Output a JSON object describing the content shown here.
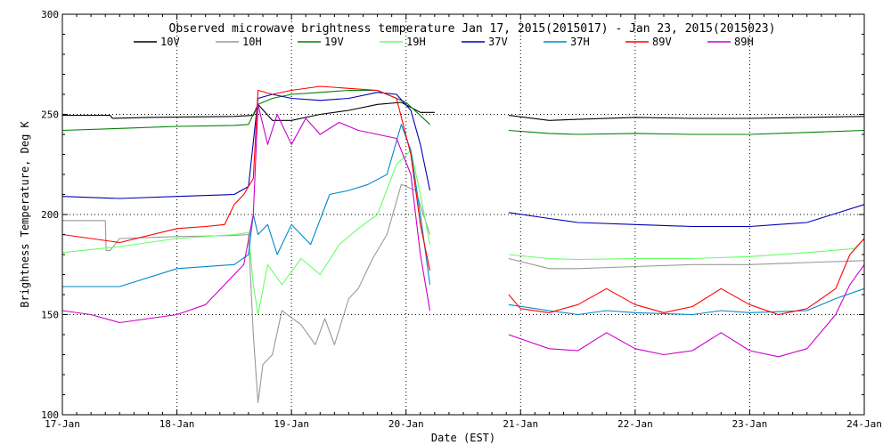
{
  "chart_data": {
    "type": "line",
    "title": "Observed microwave brightness temperature Jan 17, 2015(2015017) - Jan 23, 2015(2015023)",
    "xlabel": "Date (EST)",
    "ylabel": "Brightness Temperature, Deg K",
    "xlim": [
      "2015-01-17",
      "2015-01-24"
    ],
    "ylim": [
      100,
      300
    ],
    "x_ticks": [
      "17-Jan",
      "18-Jan",
      "19-Jan",
      "20-Jan",
      "21-Jan",
      "22-Jan",
      "23-Jan",
      "24-Jan"
    ],
    "y_ticks": [
      100,
      150,
      200,
      250,
      300
    ],
    "grid": "dotted at labeled ticks",
    "legend_position": "top",
    "series": [
      {
        "name": "10V",
        "color": "#000000",
        "points": [
          [
            "2015-01-17 00:00",
            249.5
          ],
          [
            "2015-01-17 10:00",
            249.5
          ],
          [
            "2015-01-17 10:30",
            248
          ],
          [
            "2015-01-17 18:00",
            248.5
          ],
          [
            "2015-01-18 12:00",
            249
          ],
          [
            "2015-01-18 16:00",
            249.5
          ],
          [
            "2015-01-18 17:00",
            255
          ],
          [
            "2015-01-18 20:00",
            247
          ],
          [
            "2015-01-19 00:00",
            247
          ],
          [
            "2015-01-19 06:00",
            250
          ],
          [
            "2015-01-19 12:00",
            252
          ],
          [
            "2015-01-19 18:00",
            255
          ],
          [
            "2015-01-19 23:00",
            256
          ],
          [
            "2015-01-20 03:00",
            251
          ],
          [
            "2015-01-20 06:00",
            251
          ],
          null,
          [
            "2015-01-20 21:30",
            249.5
          ],
          [
            "2015-01-21 06:00",
            247
          ],
          [
            "2015-01-21 12:00",
            247.5
          ],
          [
            "2015-01-22 00:00",
            248.5
          ],
          [
            "2015-01-22 12:00",
            248
          ],
          [
            "2015-01-23 00:00",
            248
          ],
          [
            "2015-01-23 12:00",
            248.5
          ],
          [
            "2015-01-24 00:00",
            249
          ]
        ]
      },
      {
        "name": "10H",
        "color": "#999999",
        "points": [
          [
            "2015-01-17 00:00",
            197
          ],
          [
            "2015-01-17 09:00",
            197
          ],
          [
            "2015-01-17 09:10",
            182
          ],
          [
            "2015-01-17 10:00",
            182
          ],
          [
            "2015-01-17 12:00",
            188
          ],
          [
            "2015-01-18 00:00",
            189
          ],
          [
            "2015-01-18 12:00",
            189.5
          ],
          [
            "2015-01-18 15:00",
            190
          ],
          [
            "2015-01-18 16:00",
            140
          ],
          [
            "2015-01-18 17:00",
            106
          ],
          [
            "2015-01-18 18:00",
            125
          ],
          [
            "2015-01-18 20:00",
            130
          ],
          [
            "2015-01-18 22:00",
            152
          ],
          [
            "2015-01-19 02:00",
            145
          ],
          [
            "2015-01-19 05:00",
            135
          ],
          [
            "2015-01-19 07:00",
            148
          ],
          [
            "2015-01-19 09:00",
            135
          ],
          [
            "2015-01-19 12:00",
            158
          ],
          [
            "2015-01-19 14:00",
            163
          ],
          [
            "2015-01-19 17:00",
            178
          ],
          [
            "2015-01-19 20:00",
            190
          ],
          [
            "2015-01-19 23:00",
            215
          ],
          [
            "2015-01-20 02:00",
            212
          ],
          [
            "2015-01-20 05:00",
            190
          ],
          null,
          [
            "2015-01-20 21:30",
            178
          ],
          [
            "2015-01-21 06:00",
            173
          ],
          [
            "2015-01-21 12:00",
            173
          ],
          [
            "2015-01-22 00:00",
            174
          ],
          [
            "2015-01-22 12:00",
            175
          ],
          [
            "2015-01-23 00:00",
            175
          ],
          [
            "2015-01-23 12:00",
            176
          ],
          [
            "2015-01-24 00:00",
            177
          ]
        ]
      },
      {
        "name": "19V",
        "color": "#008000",
        "points": [
          [
            "2015-01-17 00:00",
            242
          ],
          [
            "2015-01-17 12:00",
            243
          ],
          [
            "2015-01-18 00:00",
            244
          ],
          [
            "2015-01-18 12:00",
            244.5
          ],
          [
            "2015-01-18 15:00",
            245
          ],
          [
            "2015-01-18 17:00",
            255
          ],
          [
            "2015-01-18 20:00",
            258
          ],
          [
            "2015-01-19 00:00",
            260
          ],
          [
            "2015-01-19 06:00",
            261
          ],
          [
            "2015-01-19 12:00",
            262
          ],
          [
            "2015-01-19 18:00",
            262
          ],
          [
            "2015-01-20 00:00",
            256
          ],
          [
            "2015-01-20 05:00",
            245
          ],
          null,
          [
            "2015-01-20 21:30",
            242
          ],
          [
            "2015-01-21 06:00",
            240.5
          ],
          [
            "2015-01-21 12:00",
            240
          ],
          [
            "2015-01-22 00:00",
            240.5
          ],
          [
            "2015-01-22 12:00",
            240
          ],
          [
            "2015-01-23 00:00",
            240
          ],
          [
            "2015-01-23 12:00",
            241
          ],
          [
            "2015-01-24 00:00",
            242
          ]
        ]
      },
      {
        "name": "19H",
        "color": "#66ff66",
        "points": [
          [
            "2015-01-17 00:00",
            181
          ],
          [
            "2015-01-17 12:00",
            184
          ],
          [
            "2015-01-18 00:00",
            188
          ],
          [
            "2015-01-18 12:00",
            190
          ],
          [
            "2015-01-18 15:00",
            191
          ],
          [
            "2015-01-18 16:00",
            165
          ],
          [
            "2015-01-18 17:00",
            150
          ],
          [
            "2015-01-18 19:00",
            175
          ],
          [
            "2015-01-18 22:00",
            165
          ],
          [
            "2015-01-19 02:00",
            178
          ],
          [
            "2015-01-19 06:00",
            170
          ],
          [
            "2015-01-19 10:00",
            185
          ],
          [
            "2015-01-19 14:00",
            193
          ],
          [
            "2015-01-19 18:00",
            200
          ],
          [
            "2015-01-19 22:00",
            225
          ],
          [
            "2015-01-20 01:00",
            232
          ],
          [
            "2015-01-20 03:00",
            210
          ],
          [
            "2015-01-20 05:00",
            185
          ],
          null,
          [
            "2015-01-20 21:30",
            180
          ],
          [
            "2015-01-21 06:00",
            178
          ],
          [
            "2015-01-21 12:00",
            177.5
          ],
          [
            "2015-01-22 00:00",
            178
          ],
          [
            "2015-01-22 12:00",
            178
          ],
          [
            "2015-01-23 00:00",
            179
          ],
          [
            "2015-01-23 12:00",
            181
          ],
          [
            "2015-01-23 22:00",
            183
          ],
          [
            "2015-01-24 00:00",
            188
          ]
        ]
      },
      {
        "name": "37V",
        "color": "#0000b0",
        "points": [
          [
            "2015-01-17 00:00",
            209
          ],
          [
            "2015-01-17 12:00",
            208
          ],
          [
            "2015-01-18 00:00",
            209
          ],
          [
            "2015-01-18 12:00",
            210
          ],
          [
            "2015-01-18 15:00",
            214
          ],
          [
            "2015-01-18 17:00",
            258
          ],
          [
            "2015-01-18 20:00",
            260
          ],
          [
            "2015-01-19 00:00",
            258
          ],
          [
            "2015-01-19 06:00",
            257
          ],
          [
            "2015-01-19 12:00",
            258
          ],
          [
            "2015-01-19 18:00",
            261
          ],
          [
            "2015-01-19 22:00",
            260
          ],
          [
            "2015-01-20 01:00",
            252
          ],
          [
            "2015-01-20 03:00",
            235
          ],
          [
            "2015-01-20 05:00",
            212
          ],
          null,
          [
            "2015-01-20 21:30",
            201
          ],
          [
            "2015-01-21 06:00",
            198
          ],
          [
            "2015-01-21 12:00",
            196
          ],
          [
            "2015-01-22 00:00",
            195
          ],
          [
            "2015-01-22 12:00",
            194
          ],
          [
            "2015-01-23 00:00",
            194
          ],
          [
            "2015-01-23 12:00",
            196
          ],
          [
            "2015-01-23 20:00",
            202
          ],
          [
            "2015-01-24 00:00",
            205
          ]
        ]
      },
      {
        "name": "37H",
        "color": "#0088cc",
        "points": [
          [
            "2015-01-17 00:00",
            164
          ],
          [
            "2015-01-17 12:00",
            164
          ],
          [
            "2015-01-18 00:00",
            173
          ],
          [
            "2015-01-18 12:00",
            175
          ],
          [
            "2015-01-18 15:00",
            180
          ],
          [
            "2015-01-18 16:00",
            200
          ],
          [
            "2015-01-18 17:00",
            190
          ],
          [
            "2015-01-18 19:00",
            195
          ],
          [
            "2015-01-18 21:00",
            180
          ],
          [
            "2015-01-19 00:00",
            195
          ],
          [
            "2015-01-19 04:00",
            185
          ],
          [
            "2015-01-19 08:00",
            210
          ],
          [
            "2015-01-19 12:00",
            212
          ],
          [
            "2015-01-19 16:00",
            215
          ],
          [
            "2015-01-19 20:00",
            220
          ],
          [
            "2015-01-19 23:00",
            245
          ],
          [
            "2015-01-20 01:00",
            232
          ],
          [
            "2015-01-20 03:00",
            200
          ],
          [
            "2015-01-20 05:00",
            165
          ],
          null,
          [
            "2015-01-20 21:30",
            155
          ],
          [
            "2015-01-21 06:00",
            152
          ],
          [
            "2015-01-21 12:00",
            150
          ],
          [
            "2015-01-21 18:00",
            152
          ],
          [
            "2015-01-22 00:00",
            151
          ],
          [
            "2015-01-22 12:00",
            150
          ],
          [
            "2015-01-22 18:00",
            152
          ],
          [
            "2015-01-23 00:00",
            151
          ],
          [
            "2015-01-23 12:00",
            152
          ],
          [
            "2015-01-23 18:00",
            158
          ],
          [
            "2015-01-24 00:00",
            163
          ]
        ]
      },
      {
        "name": "89V",
        "color": "#ff0000",
        "points": [
          [
            "2015-01-17 00:00",
            190
          ],
          [
            "2015-01-17 06:00",
            188
          ],
          [
            "2015-01-17 12:00",
            186
          ],
          [
            "2015-01-18 00:00",
            193
          ],
          [
            "2015-01-18 06:00",
            194
          ],
          [
            "2015-01-18 10:00",
            195
          ],
          [
            "2015-01-18 12:00",
            205
          ],
          [
            "2015-01-18 14:00",
            210
          ],
          [
            "2015-01-18 16:00",
            218
          ],
          [
            "2015-01-18 17:00",
            262
          ],
          [
            "2015-01-18 20:00",
            260
          ],
          [
            "2015-01-19 00:00",
            262
          ],
          [
            "2015-01-19 06:00",
            264
          ],
          [
            "2015-01-19 12:00",
            263
          ],
          [
            "2015-01-19 18:00",
            262
          ],
          [
            "2015-01-19 22:00",
            258
          ],
          [
            "2015-01-20 01:00",
            230
          ],
          [
            "2015-01-20 03:00",
            195
          ],
          [
            "2015-01-20 05:00",
            172
          ],
          null,
          [
            "2015-01-20 21:30",
            160
          ],
          [
            "2015-01-21 00:00",
            153
          ],
          [
            "2015-01-21 06:00",
            151
          ],
          [
            "2015-01-21 12:00",
            155
          ],
          [
            "2015-01-21 18:00",
            163
          ],
          [
            "2015-01-22 00:00",
            155
          ],
          [
            "2015-01-22 06:00",
            151
          ],
          [
            "2015-01-22 12:00",
            154
          ],
          [
            "2015-01-22 18:00",
            163
          ],
          [
            "2015-01-23 00:00",
            155
          ],
          [
            "2015-01-23 06:00",
            150
          ],
          [
            "2015-01-23 12:00",
            153
          ],
          [
            "2015-01-23 18:00",
            163
          ],
          [
            "2015-01-23 21:00",
            180
          ],
          [
            "2015-01-24 00:00",
            188
          ]
        ]
      },
      {
        "name": "89H",
        "color": "#cc00cc",
        "points": [
          [
            "2015-01-17 00:00",
            152
          ],
          [
            "2015-01-17 06:00",
            150
          ],
          [
            "2015-01-17 12:00",
            146
          ],
          [
            "2015-01-18 00:00",
            150
          ],
          [
            "2015-01-18 06:00",
            155
          ],
          [
            "2015-01-18 12:00",
            170
          ],
          [
            "2015-01-18 14:00",
            175
          ],
          [
            "2015-01-18 16:00",
            200
          ],
          [
            "2015-01-18 17:00",
            255
          ],
          [
            "2015-01-18 19:00",
            235
          ],
          [
            "2015-01-18 21:00",
            250
          ],
          [
            "2015-01-19 00:00",
            235
          ],
          [
            "2015-01-19 03:00",
            248
          ],
          [
            "2015-01-19 06:00",
            240
          ],
          [
            "2015-01-19 10:00",
            246
          ],
          [
            "2015-01-19 14:00",
            242
          ],
          [
            "2015-01-19 18:00",
            240
          ],
          [
            "2015-01-19 22:00",
            238
          ],
          [
            "2015-01-20 01:00",
            220
          ],
          [
            "2015-01-20 03:00",
            180
          ],
          [
            "2015-01-20 05:00",
            152
          ],
          null,
          [
            "2015-01-20 21:30",
            140
          ],
          [
            "2015-01-21 06:00",
            133
          ],
          [
            "2015-01-21 12:00",
            132
          ],
          [
            "2015-01-21 18:00",
            141
          ],
          [
            "2015-01-22 00:00",
            133
          ],
          [
            "2015-01-22 06:00",
            130
          ],
          [
            "2015-01-22 12:00",
            132
          ],
          [
            "2015-01-22 18:00",
            141
          ],
          [
            "2015-01-23 00:00",
            132
          ],
          [
            "2015-01-23 06:00",
            129
          ],
          [
            "2015-01-23 12:00",
            133
          ],
          [
            "2015-01-23 18:00",
            150
          ],
          [
            "2015-01-23 21:00",
            165
          ],
          [
            "2015-01-24 00:00",
            175
          ]
        ]
      }
    ]
  }
}
